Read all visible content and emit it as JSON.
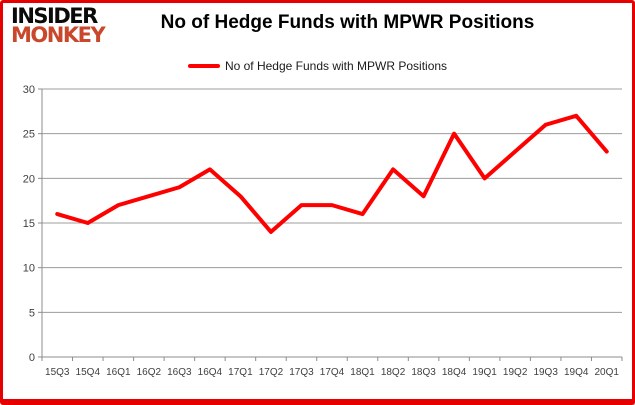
{
  "logo": {
    "line1": "INSIDER",
    "line2": "MONKEY"
  },
  "header": {
    "title": "No of Hedge Funds with MPWR Positions"
  },
  "legend": {
    "label": "No of Hedge Funds with MPWR Positions"
  },
  "colors": {
    "series_red": "#ff0000",
    "logo_red": "#c9472b",
    "border_red": "#e60000",
    "gridline_gray": "#9c9c9c",
    "axis_gray": "#8c8c8c",
    "axis_text": "#3f3f3f"
  },
  "chart_data": {
    "type": "line",
    "title": "No of Hedge Funds with MPWR Positions",
    "categories": [
      "15Q3",
      "15Q4",
      "16Q1",
      "16Q2",
      "16Q3",
      "16Q4",
      "17Q1",
      "17Q2",
      "17Q3",
      "17Q4",
      "18Q1",
      "18Q2",
      "18Q3",
      "18Q4",
      "19Q1",
      "19Q2",
      "19Q3",
      "19Q4",
      "20Q1"
    ],
    "series": [
      {
        "name": "No of Hedge Funds with MPWR Positions",
        "color": "#ff0000",
        "values": [
          16,
          15,
          17,
          18,
          19,
          21,
          18,
          14,
          17,
          17,
          16,
          21,
          18,
          25,
          20,
          23,
          26,
          27,
          23
        ]
      }
    ],
    "ylim": [
      0,
      30
    ],
    "yticks": [
      0,
      5,
      10,
      15,
      20,
      25,
      30
    ],
    "xlabel": "",
    "ylabel": "",
    "grid": true,
    "legend_position": "top-center"
  }
}
